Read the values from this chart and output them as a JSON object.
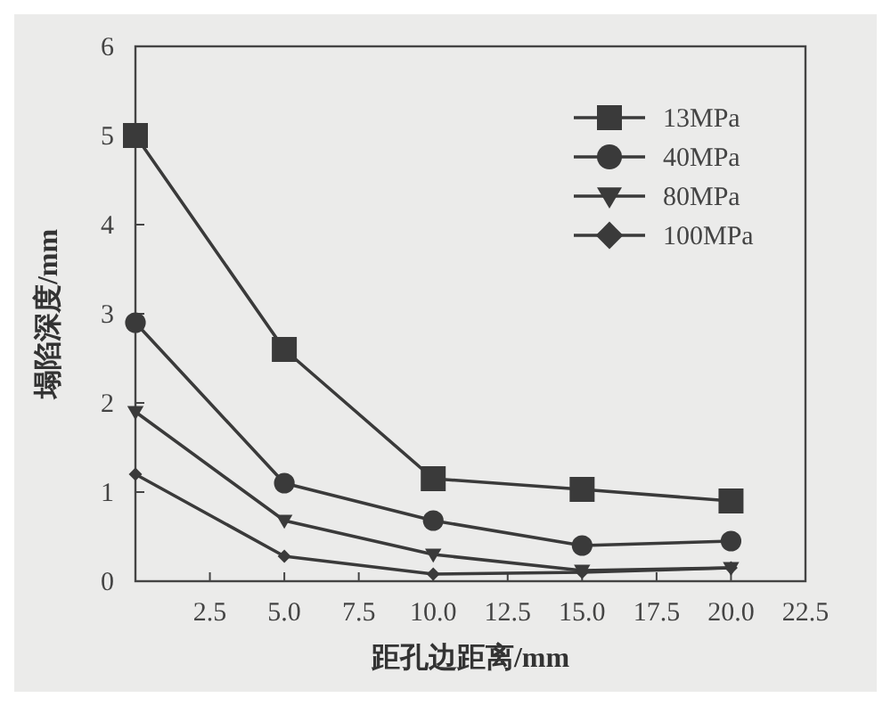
{
  "chart_data": {
    "type": "line",
    "xlabel": "距孔边距离/mm",
    "ylabel": "塌陷深度/mm",
    "x": [
      0,
      5,
      10,
      15,
      20
    ],
    "series": [
      {
        "name": "13MPa",
        "color": "#3a3a3a",
        "marker": "square",
        "values": [
          5.0,
          2.6,
          1.15,
          1.03,
          0.9
        ]
      },
      {
        "name": "40MPa",
        "color": "#3a3a3a",
        "marker": "circle",
        "values": [
          2.9,
          1.1,
          0.68,
          0.4,
          0.45
        ]
      },
      {
        "name": "80MPa",
        "color": "#3a3a3a",
        "marker": "triangle",
        "values": [
          1.9,
          0.68,
          0.3,
          0.12,
          0.15
        ]
      },
      {
        "name": "100MPa",
        "color": "#3a3a3a",
        "marker": "diamond",
        "values": [
          1.2,
          0.28,
          0.08,
          0.1,
          0.15
        ]
      }
    ],
    "xlim": [
      0,
      22.5
    ],
    "ylim": [
      0,
      6
    ],
    "xticks": [
      2.5,
      {
        "value": 5,
        "label": "5.0"
      },
      7.5,
      {
        "value": 10,
        "label": "10.0"
      },
      12.5,
      {
        "value": 15,
        "label": "15.0"
      },
      17.5,
      {
        "value": 20,
        "label": "20.0"
      },
      22.5
    ],
    "yticks": [
      0,
      1,
      2,
      3,
      4,
      5,
      6
    ],
    "grid": false,
    "legend": "top right",
    "line_style": "solid"
  }
}
